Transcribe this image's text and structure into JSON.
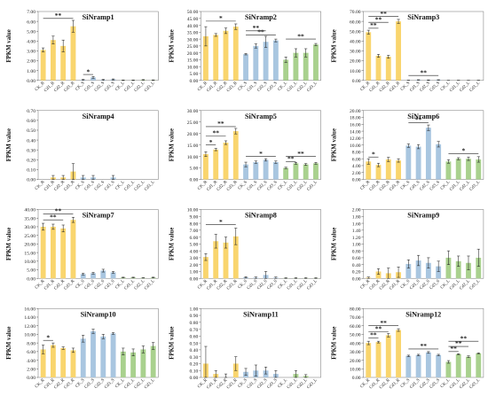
{
  "figure": {
    "ylabel": "FPKM value",
    "categories": [
      "CK_R",
      "Cd1_R",
      "Cd2_R",
      "Cd3_R",
      "CK_S",
      "Cd1_S",
      "Cd2_S",
      "Cd3_S",
      "CK_L",
      "Cd1_L",
      "Cd2_L",
      "Cd3_L"
    ],
    "colors": {
      "R": "#F9D56E",
      "S": "#A9C6E0",
      "L": "#A9D18E",
      "bar_edge": "#ffffff",
      "errorbar": "#222222",
      "sig": "#222222"
    }
  },
  "chart_data": [
    {
      "type": "bar",
      "title": "SiNramp1",
      "ylabel": "FPKM value",
      "ylim": [
        0,
        7
      ],
      "ystep": 1,
      "ydecimals": 2,
      "values": [
        3.1,
        4.1,
        3.5,
        5.5,
        0.05,
        0.3,
        0.05,
        0.1,
        0.02,
        0.02,
        0.05,
        0.03
      ],
      "errors": [
        0.2,
        0.4,
        0.6,
        0.6,
        0.05,
        0.1,
        0.05,
        0.05,
        0.02,
        0.02,
        0.03,
        0.02
      ],
      "sig": [
        {
          "from": 0,
          "to": 3,
          "y": 6.3,
          "label": "**"
        },
        {
          "from": 4,
          "to": 5,
          "y": 0.6,
          "label": "*"
        }
      ]
    },
    {
      "type": "bar",
      "title": "SiNramp2",
      "ylabel": "FPKM value",
      "ylim": [
        0,
        50
      ],
      "ystep": 5,
      "ydecimals": 2,
      "values": [
        32,
        33,
        36,
        39,
        19,
        25,
        28,
        29,
        15,
        20,
        20,
        26
      ],
      "errors": [
        7,
        1,
        2,
        2,
        0.5,
        1.5,
        4,
        1,
        2,
        3,
        3,
        0.8
      ],
      "sig": [
        {
          "from": 0,
          "to": 3,
          "y": 43,
          "label": "*"
        },
        {
          "from": 4,
          "to": 6,
          "y": 36,
          "label": "**"
        },
        {
          "from": 4,
          "to": 7,
          "y": 33,
          "label": "**"
        },
        {
          "from": 8,
          "to": 11,
          "y": 30,
          "label": "**"
        }
      ]
    },
    {
      "type": "bar",
      "title": "SiNramp3",
      "ylabel": "FPKM value",
      "ylim": [
        0,
        70
      ],
      "ystep": 10,
      "ydecimals": 2,
      "values": [
        49,
        25,
        24,
        60,
        0.1,
        0.5,
        0.3,
        0.5,
        0.05,
        0.1,
        0.05,
        0.1
      ],
      "errors": [
        2,
        1.5,
        1.5,
        2,
        0.1,
        0.2,
        0.2,
        0.2,
        0.05,
        0.05,
        0.05,
        0.05
      ],
      "sig": [
        {
          "from": 0,
          "to": 1,
          "y": 53,
          "label": "**"
        },
        {
          "from": 0,
          "to": 2,
          "y": 59,
          "label": "**"
        },
        {
          "from": 0,
          "to": 3,
          "y": 65,
          "label": "**"
        },
        {
          "from": 4,
          "to": 7,
          "y": 5,
          "label": "**"
        }
      ]
    },
    {
      "type": "bar",
      "title": "SiNramp4",
      "ylabel": "FPKM value",
      "ylim": [
        0,
        0.7
      ],
      "ystep": 0.1,
      "ydecimals": 2,
      "values": [
        0.0,
        0.02,
        0.02,
        0.08,
        0.02,
        0.02,
        0.0,
        0.02,
        0.0,
        0.0,
        0.0,
        0.0
      ],
      "errors": [
        0.0,
        0.02,
        0.02,
        0.08,
        0.02,
        0.02,
        0.0,
        0.02,
        0.0,
        0.0,
        0.0,
        0.0
      ],
      "sig": []
    },
    {
      "type": "bar",
      "title": "SiNramp5",
      "ylabel": "FPKM value",
      "ylim": [
        0,
        30
      ],
      "ystep": 5,
      "ydecimals": 2,
      "values": [
        11,
        13,
        16,
        21,
        6.5,
        7.5,
        8.5,
        7.5,
        5,
        7,
        6.5,
        7
      ],
      "errors": [
        1,
        0.5,
        0.8,
        1.2,
        1,
        0.5,
        0.5,
        0.5,
        0.3,
        0.4,
        0.4,
        0.4
      ],
      "sig": [
        {
          "from": 0,
          "to": 1,
          "y": 15,
          "label": "*"
        },
        {
          "from": 0,
          "to": 2,
          "y": 19,
          "label": "**"
        },
        {
          "from": 0,
          "to": 3,
          "y": 23,
          "label": "**"
        },
        {
          "from": 4,
          "to": 7,
          "y": 10,
          "label": "*"
        },
        {
          "from": 8,
          "to": 9,
          "y": 7.8,
          "label": "**"
        },
        {
          "from": 8,
          "to": 11,
          "y": 10,
          "label": "**"
        }
      ]
    },
    {
      "type": "bar",
      "title": "SiNramp6",
      "ylabel": "FPKM value",
      "ylim": [
        0,
        20
      ],
      "ystep": 2,
      "ydecimals": 2,
      "values": [
        5.2,
        4.2,
        5.8,
        5.5,
        9.8,
        9.5,
        15,
        10.2,
        5.2,
        6,
        6,
        5.8
      ],
      "errors": [
        0.8,
        0.5,
        0.6,
        0.5,
        0.5,
        0.6,
        0.8,
        0.8,
        0.5,
        0.3,
        0.5,
        0.8
      ],
      "sig": [
        {
          "from": 0,
          "to": 1,
          "y": 6.5,
          "label": "*"
        },
        {
          "from": 4,
          "to": 6,
          "y": 16.5,
          "label": "**"
        },
        {
          "from": 8,
          "to": 11,
          "y": 7.5,
          "label": "*"
        }
      ]
    },
    {
      "type": "bar",
      "title": "SiNramp7",
      "ylabel": "FPKM value",
      "ylim": [
        0,
        40
      ],
      "ystep": 5,
      "ydecimals": 2,
      "values": [
        30,
        30,
        29,
        34,
        2.5,
        3,
        4.5,
        3.5,
        0.5,
        0.5,
        0.3,
        0.5
      ],
      "errors": [
        2,
        1.5,
        2,
        1.5,
        0.5,
        0.5,
        0.8,
        0.5,
        0.2,
        0.2,
        0.1,
        0.2
      ],
      "sig": [
        {
          "from": 0,
          "to": 2,
          "y": 34,
          "label": "**"
        },
        {
          "from": 0,
          "to": 3,
          "y": 37.5,
          "label": "**"
        }
      ]
    },
    {
      "type": "bar",
      "title": "SiNramp8",
      "ylabel": "FPKM value",
      "ylim": [
        0,
        10
      ],
      "ystep": 1,
      "ydecimals": 2,
      "values": [
        3.1,
        5.4,
        5.2,
        6.1,
        0.15,
        0.1,
        0.5,
        0.1,
        0.05,
        0.05,
        0.05,
        0.05
      ],
      "errors": [
        0.5,
        1,
        0.8,
        1.2,
        0.1,
        0.1,
        0.5,
        0.1,
        0.05,
        0.05,
        0.05,
        0.05
      ],
      "sig": [
        {
          "from": 0,
          "to": 3,
          "y": 7.8,
          "label": "*"
        }
      ]
    },
    {
      "type": "bar",
      "title": "SiNramp9",
      "ylabel": "FPKM value",
      "ylim": [
        0,
        2
      ],
      "ystep": 0.2,
      "ydecimals": 2,
      "values": [
        0.02,
        0.2,
        0.15,
        0.18,
        0.42,
        0.52,
        0.45,
        0.35,
        0.6,
        0.5,
        0.45,
        0.6
      ],
      "errors": [
        0.02,
        0.08,
        0.15,
        0.15,
        0.12,
        0.15,
        0.15,
        0.15,
        0.2,
        0.15,
        0.2,
        0.25
      ],
      "sig": []
    },
    {
      "type": "bar",
      "title": "SiNramp10",
      "ylabel": "FPKM value",
      "ylim": [
        0,
        16
      ],
      "ystep": 2,
      "ydecimals": 2,
      "values": [
        6.5,
        7.5,
        6.8,
        6.3,
        9,
        10.7,
        9.5,
        10.2,
        6,
        5.8,
        6.5,
        7.3
      ],
      "errors": [
        1,
        0.5,
        0.3,
        0.5,
        0.8,
        0.5,
        0.5,
        0.2,
        0.8,
        0.8,
        0.8,
        0.8
      ],
      "sig": [
        {
          "from": 0,
          "to": 1,
          "y": 8.6,
          "label": "*"
        }
      ]
    },
    {
      "type": "bar",
      "title": "SiNramp11",
      "ylabel": "FPKM value",
      "ylim": [
        0,
        1
      ],
      "ystep": 0.1,
      "ydecimals": 2,
      "values": [
        0.2,
        0.05,
        0.0,
        0.2,
        0.08,
        0.1,
        0.1,
        0.05,
        0.0,
        0.05,
        0.02,
        0.0
      ],
      "errors": [
        0.25,
        0.05,
        0.05,
        0.1,
        0.05,
        0.08,
        0.05,
        0.05,
        0.0,
        0.05,
        0.02,
        0.0
      ],
      "sig": []
    },
    {
      "type": "bar",
      "title": "SiNramp12",
      "ylabel": "FPKM value",
      "ylim": [
        0,
        80
      ],
      "ystep": 10,
      "ydecimals": 2,
      "values": [
        40,
        41,
        49,
        55,
        25,
        26,
        29,
        26,
        18,
        27,
        24,
        28
      ],
      "errors": [
        2,
        1,
        2,
        1.5,
        0.8,
        0.8,
        1,
        0.8,
        1.5,
        0.5,
        1,
        0.5
      ],
      "sig": [
        {
          "from": 0,
          "to": 1,
          "y": 46,
          "label": "**"
        },
        {
          "from": 0,
          "to": 2,
          "y": 53,
          "label": "**"
        },
        {
          "from": 0,
          "to": 3,
          "y": 60,
          "label": "**"
        },
        {
          "from": 4,
          "to": 7,
          "y": 33,
          "label": "**"
        },
        {
          "from": 8,
          "to": 9,
          "y": 30,
          "label": "**"
        },
        {
          "from": 8,
          "to": 10,
          "y": 36,
          "label": "**"
        },
        {
          "from": 8,
          "to": 11,
          "y": 42,
          "label": "**"
        }
      ]
    }
  ]
}
